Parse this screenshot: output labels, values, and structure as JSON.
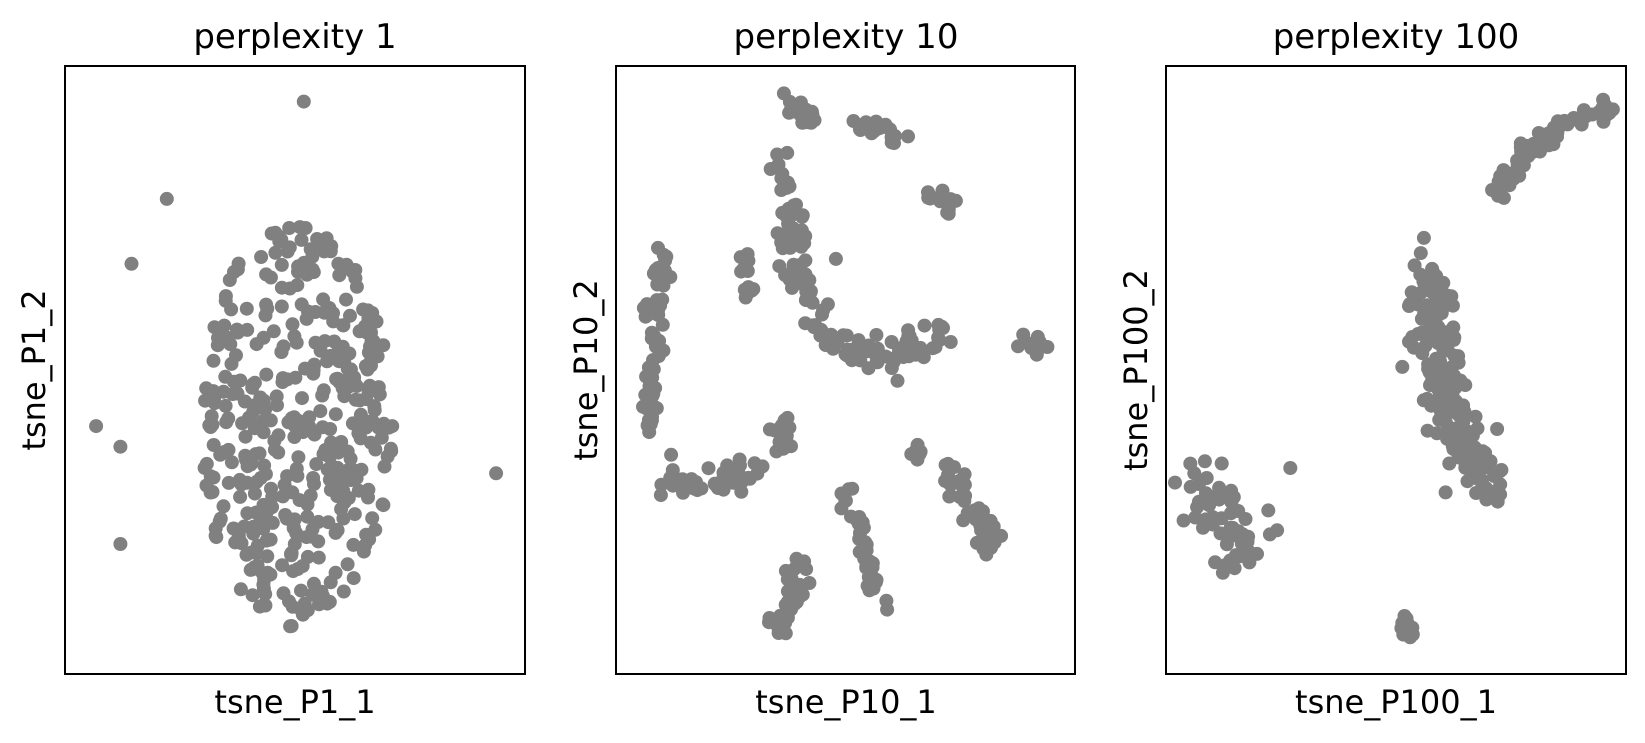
{
  "chart_data": [
    {
      "type": "scatter",
      "title": "perplexity 1",
      "xlabel": "tsne_P1_1",
      "ylabel": "tsne_P1_2",
      "ticks": false,
      "color": "#808080",
      "outliers": [
        [
          0.52,
          0.955
        ],
        [
          0.21,
          0.79
        ],
        [
          0.13,
          0.68
        ],
        [
          0.05,
          0.405
        ],
        [
          0.105,
          0.37
        ],
        [
          0.105,
          0.205
        ],
        [
          0.955,
          0.325
        ]
      ],
      "blob": {
        "cx": 0.5,
        "cy": 0.405,
        "rx": 0.22,
        "ry": 0.34,
        "count": 420
      }
    },
    {
      "type": "scatter",
      "title": "perplexity 10",
      "xlabel": "tsne_P10_1",
      "ylabel": "tsne_P10_2",
      "ticks": false,
      "color": "#808080",
      "clusters": [
        {
          "path": [
            [
              0.37,
              0.945
            ],
            [
              0.43,
              0.93
            ]
          ],
          "spread": 0.01,
          "count": 24
        },
        {
          "path": [
            [
              0.53,
              0.92
            ],
            [
              0.62,
              0.89
            ]
          ],
          "spread": 0.011,
          "count": 22
        },
        {
          "path": [
            [
              0.68,
              0.805
            ],
            [
              0.75,
              0.77
            ]
          ],
          "spread": 0.009,
          "count": 14
        },
        {
          "path": [
            [
              0.35,
              0.86
            ],
            [
              0.36,
              0.79
            ],
            [
              0.38,
              0.72
            ],
            [
              0.41,
              0.64
            ],
            [
              0.45,
              0.57
            ],
            [
              0.52,
              0.53
            ],
            [
              0.6,
              0.54
            ],
            [
              0.7,
              0.55
            ],
            [
              0.73,
              0.58
            ]
          ],
          "spread": 0.018,
          "count": 140
        },
        {
          "path": [
            [
              0.28,
              0.71
            ],
            [
              0.28,
              0.62
            ]
          ],
          "spread": 0.008,
          "count": 14
        },
        {
          "path": [
            [
              0.48,
              0.69
            ]
          ],
          "spread": 0.003,
          "count": 1
        },
        {
          "path": [
            [
              0.09,
              0.72
            ],
            [
              0.07,
              0.6
            ],
            [
              0.06,
              0.48
            ],
            [
              0.055,
              0.4
            ]
          ],
          "spread": 0.01,
          "count": 60
        },
        {
          "path": [
            [
              0.9,
              0.545
            ],
            [
              0.96,
              0.545
            ]
          ],
          "spread": 0.008,
          "count": 12
        },
        {
          "path": [
            [
              0.09,
              0.32
            ],
            [
              0.18,
              0.3
            ],
            [
              0.26,
              0.32
            ],
            [
              0.3,
              0.34
            ]
          ],
          "spread": 0.013,
          "count": 40
        },
        {
          "path": [
            [
              0.35,
              0.41
            ],
            [
              0.36,
              0.36
            ]
          ],
          "spread": 0.012,
          "count": 18
        },
        {
          "path": [
            [
              0.66,
              0.38
            ],
            [
              0.67,
              0.35
            ]
          ],
          "spread": 0.006,
          "count": 6
        },
        {
          "path": [
            [
              0.73,
              0.34
            ],
            [
              0.78,
              0.27
            ],
            [
              0.82,
              0.21
            ],
            [
              0.84,
              0.2
            ]
          ],
          "spread": 0.015,
          "count": 44
        },
        {
          "path": [
            [
              0.5,
              0.29
            ],
            [
              0.54,
              0.2
            ],
            [
              0.56,
              0.14
            ],
            [
              0.58,
              0.1
            ]
          ],
          "spread": 0.012,
          "count": 40
        },
        {
          "path": [
            [
              0.4,
              0.17
            ],
            [
              0.37,
              0.1
            ],
            [
              0.34,
              0.06
            ]
          ],
          "spread": 0.015,
          "count": 36
        }
      ]
    },
    {
      "type": "scatter",
      "title": "perplexity 100",
      "xlabel": "tsne_P100_1",
      "ylabel": "tsne_P100_2",
      "ticks": false,
      "color": "#808080",
      "clusters": [
        {
          "path": [
            [
              0.72,
              0.8
            ],
            [
              0.8,
              0.87
            ],
            [
              0.88,
              0.92
            ],
            [
              0.96,
              0.94
            ],
            [
              0.99,
              0.94
            ]
          ],
          "spread": 0.01,
          "count": 80
        },
        {
          "path": [
            [
              0.57,
              0.68
            ],
            [
              0.59,
              0.55
            ],
            [
              0.61,
              0.47
            ],
            [
              0.65,
              0.38
            ],
            [
              0.71,
              0.3
            ]
          ],
          "spread": 0.025,
          "count": 220
        },
        {
          "path": [
            [
              0.08,
              0.28
            ]
          ],
          "spread": 0.03,
          "count": 30
        },
        {
          "path": [
            [
              0.14,
              0.21
            ]
          ],
          "spread": 0.025,
          "count": 26
        },
        {
          "path": [
            [
              0.26,
              0.33
            ]
          ],
          "spread": 0.003,
          "count": 1
        },
        {
          "path": [
            [
              0.23,
              0.225
            ]
          ],
          "spread": 0.003,
          "count": 1
        },
        {
          "path": [
            [
              0.52,
              0.06
            ]
          ],
          "spread": 0.012,
          "count": 16
        }
      ]
    }
  ]
}
